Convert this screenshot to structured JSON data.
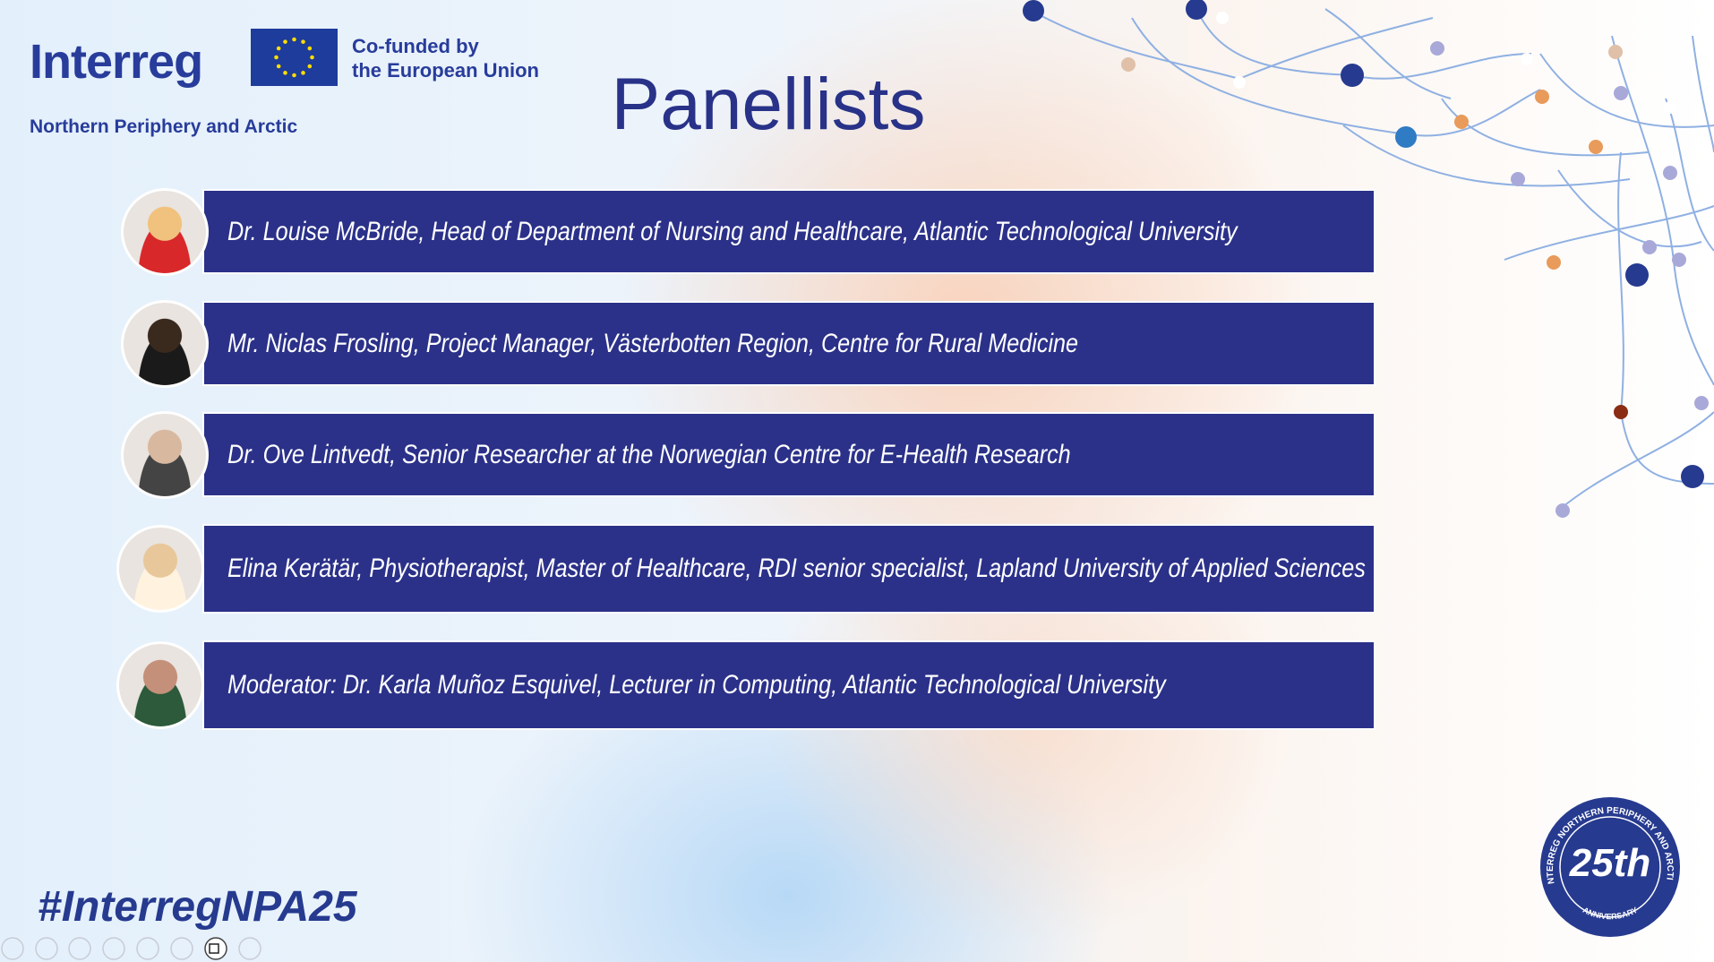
{
  "header": {
    "logo": "Interreg",
    "cofunded_line1": "Co-funded by",
    "cofunded_line2": "the European Union",
    "programme": "Northern Periphery and Arctic"
  },
  "title": "Panellists",
  "panellists": [
    "Dr. Louise McBride, Head of Department of Nursing and Healthcare, Atlantic Technological University",
    "Mr. Niclas Frosling, Project Manager, Västerbotten Region, Centre for Rural Medicine",
    "Dr. Ove Lintvedt, Senior Researcher at the Norwegian Centre for E-Health Research",
    "Elina Kerätär, Physiotherapist, Master of Healthcare, RDI senior specialist, Lapland University of Applied Sciences",
    "Moderator: Dr. Karla Muñoz Esquivel, Lecturer in Computing, Atlantic Technological University"
  ],
  "hashtag": "#InterregNPA25",
  "badge": {
    "ring": "INTERREG NORTHERN PERIPHERY AND ARCTIC",
    "number": "25th",
    "bottom": "ANNIVERSARY"
  }
}
